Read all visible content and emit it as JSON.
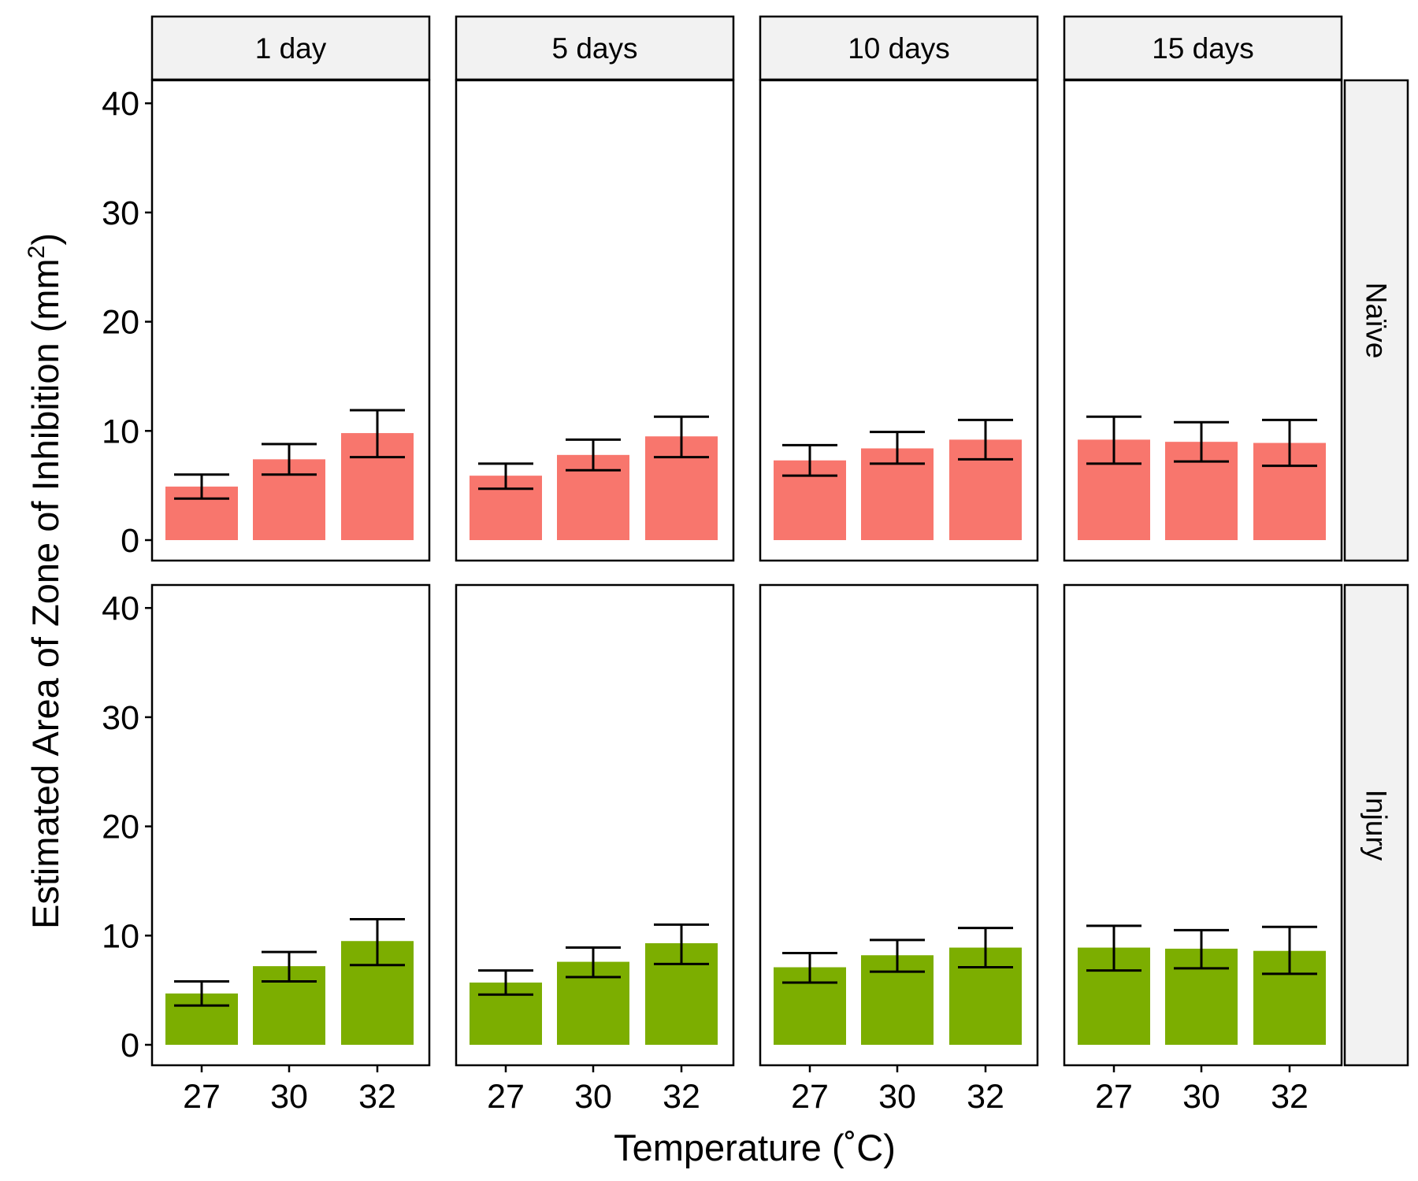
{
  "chart_data": {
    "type": "bar",
    "facet_layout": "grid",
    "columns": [
      "1 day",
      "5 days",
      "10 days",
      "15 days"
    ],
    "rows": [
      "Naïve",
      "Injury"
    ],
    "categories": [
      "27",
      "30",
      "32"
    ],
    "xlabel": "Temperature (˚C)",
    "ylabel": "Estimated Area of Zone of Inhibition (mm",
    "ylabel_superscript": "2",
    "ylabel_suffix": ")",
    "ylim": [
      0,
      42
    ],
    "yticks": [
      0,
      10,
      20,
      30,
      40
    ],
    "grid": false,
    "legend": "none",
    "row_colors": {
      "Naïve": "#F8766D",
      "Injury": "#7CAE00"
    },
    "error_bars": true,
    "panels": [
      {
        "row": "Naïve",
        "column": "1 day",
        "values": [
          4.9,
          7.4,
          9.8
        ],
        "lower": [
          3.8,
          6.0,
          7.6
        ],
        "upper": [
          6.0,
          8.8,
          11.9
        ]
      },
      {
        "row": "Naïve",
        "column": "5 days",
        "values": [
          5.9,
          7.8,
          9.5
        ],
        "lower": [
          4.7,
          6.4,
          7.6
        ],
        "upper": [
          7.0,
          9.2,
          11.3
        ]
      },
      {
        "row": "Naïve",
        "column": "10 days",
        "values": [
          7.3,
          8.4,
          9.2
        ],
        "lower": [
          5.9,
          7.0,
          7.4
        ],
        "upper": [
          8.7,
          9.9,
          11.0
        ]
      },
      {
        "row": "Naïve",
        "column": "15 days",
        "values": [
          9.2,
          9.0,
          8.9
        ],
        "lower": [
          7.0,
          7.2,
          6.8
        ],
        "upper": [
          11.3,
          10.8,
          11.0
        ]
      },
      {
        "row": "Injury",
        "column": "1 day",
        "values": [
          4.7,
          7.2,
          9.5
        ],
        "lower": [
          3.6,
          5.8,
          7.3
        ],
        "upper": [
          5.8,
          8.5,
          11.5
        ]
      },
      {
        "row": "Injury",
        "column": "5 days",
        "values": [
          5.7,
          7.6,
          9.3
        ],
        "lower": [
          4.6,
          6.2,
          7.4
        ],
        "upper": [
          6.8,
          8.9,
          11.0
        ]
      },
      {
        "row": "Injury",
        "column": "10 days",
        "values": [
          7.1,
          8.2,
          8.9
        ],
        "lower": [
          5.7,
          6.7,
          7.1
        ],
        "upper": [
          8.4,
          9.6,
          10.7
        ]
      },
      {
        "row": "Injury",
        "column": "15 days",
        "values": [
          8.9,
          8.8,
          8.6
        ],
        "lower": [
          6.8,
          7.0,
          6.5
        ],
        "upper": [
          10.9,
          10.5,
          10.8
        ]
      }
    ]
  }
}
